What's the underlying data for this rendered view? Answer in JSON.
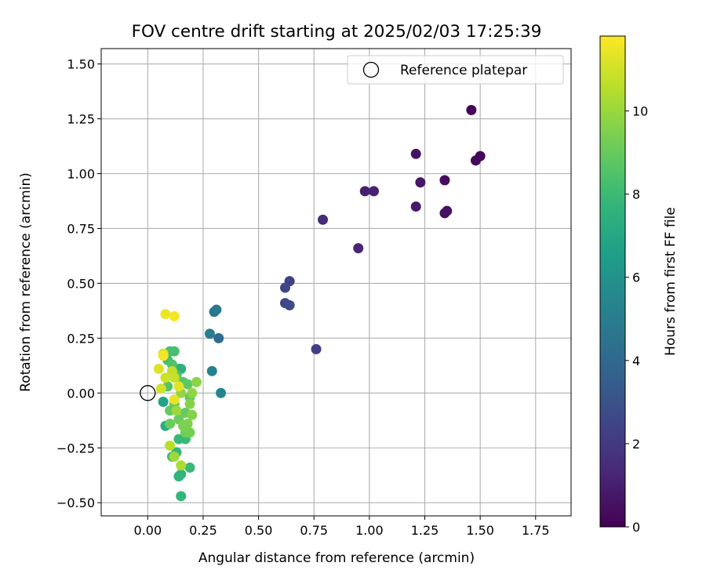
{
  "chart_data": {
    "type": "scatter",
    "title": "FOV centre drift starting at 2025/02/03 17:25:39",
    "xlabel": "Angular distance from reference (arcmin)",
    "ylabel": "Rotation from reference (arcmin)",
    "xlim": [
      -0.21,
      1.91
    ],
    "ylim": [
      -0.56,
      1.57
    ],
    "xticks": [
      "0.00",
      "0.25",
      "0.50",
      "0.75",
      "1.00",
      "1.25",
      "1.50",
      "1.75"
    ],
    "xtick_values": [
      0,
      0.25,
      0.5,
      0.75,
      1.0,
      1.25,
      1.5,
      1.75
    ],
    "yticks": [
      "−0.50",
      "−0.25",
      "0.00",
      "0.25",
      "0.50",
      "0.75",
      "1.00",
      "1.25",
      "1.50"
    ],
    "ytick_values": [
      -0.5,
      -0.25,
      0,
      0.25,
      0.5,
      0.75,
      1.0,
      1.25,
      1.5
    ],
    "grid": true,
    "legend": {
      "position": "top-right",
      "label": "Reference platepar"
    },
    "reference_point": {
      "x": 0,
      "y": 0
    },
    "colorbar": {
      "label": "Hours from first FF file",
      "colormap": "viridis",
      "range": [
        0,
        11.8
      ],
      "ticks": [
        "0",
        "2",
        "4",
        "6",
        "8",
        "10"
      ],
      "tick_values": [
        0,
        2,
        4,
        6,
        8,
        10
      ]
    },
    "points": [
      {
        "x": 1.46,
        "y": 1.29,
        "c": 0.1
      },
      {
        "x": 1.48,
        "y": 1.06,
        "c": 0.2
      },
      {
        "x": 1.5,
        "y": 1.08,
        "c": 0.2
      },
      {
        "x": 1.34,
        "y": 0.97,
        "c": 0.4
      },
      {
        "x": 1.34,
        "y": 0.82,
        "c": 0.5
      },
      {
        "x": 1.35,
        "y": 0.83,
        "c": 0.5
      },
      {
        "x": 1.21,
        "y": 1.09,
        "c": 0.6
      },
      {
        "x": 1.23,
        "y": 0.96,
        "c": 0.7
      },
      {
        "x": 1.21,
        "y": 0.85,
        "c": 0.8
      },
      {
        "x": 0.98,
        "y": 0.92,
        "c": 1.0
      },
      {
        "x": 1.02,
        "y": 0.92,
        "c": 1.1
      },
      {
        "x": 0.95,
        "y": 0.66,
        "c": 1.2
      },
      {
        "x": 0.79,
        "y": 0.79,
        "c": 1.5
      },
      {
        "x": 0.76,
        "y": 0.2,
        "c": 2.2
      },
      {
        "x": 0.64,
        "y": 0.51,
        "c": 2.3
      },
      {
        "x": 0.62,
        "y": 0.48,
        "c": 2.5
      },
      {
        "x": 0.62,
        "y": 0.41,
        "c": 2.6
      },
      {
        "x": 0.64,
        "y": 0.4,
        "c": 2.7
      },
      {
        "x": 0.3,
        "y": 0.37,
        "c": 4.6
      },
      {
        "x": 0.31,
        "y": 0.38,
        "c": 4.8
      },
      {
        "x": 0.32,
        "y": 0.25,
        "c": 4.2
      },
      {
        "x": 0.28,
        "y": 0.27,
        "c": 5.0
      },
      {
        "x": 0.29,
        "y": 0.1,
        "c": 5.2
      },
      {
        "x": 0.33,
        "y": 0.0,
        "c": 5.4
      },
      {
        "x": 0.07,
        "y": -0.04,
        "c": 6.8
      },
      {
        "x": 0.12,
        "y": -0.03,
        "c": 7.0
      },
      {
        "x": 0.08,
        "y": -0.15,
        "c": 7.3
      },
      {
        "x": 0.14,
        "y": 0.11,
        "c": 7.4
      },
      {
        "x": 0.15,
        "y": 0.11,
        "c": 7.5
      },
      {
        "x": 0.15,
        "y": -0.37,
        "c": 7.6
      },
      {
        "x": 0.14,
        "y": -0.38,
        "c": 7.7
      },
      {
        "x": 0.13,
        "y": -0.27,
        "c": 7.8
      },
      {
        "x": 0.15,
        "y": -0.47,
        "c": 7.8
      },
      {
        "x": 0.19,
        "y": -0.34,
        "c": 8.0
      },
      {
        "x": 0.17,
        "y": -0.21,
        "c": 8.0
      },
      {
        "x": 0.14,
        "y": -0.21,
        "c": 7.9
      },
      {
        "x": 0.11,
        "y": -0.29,
        "c": 8.1
      },
      {
        "x": 0.09,
        "y": 0.15,
        "c": 8.2
      },
      {
        "x": 0.1,
        "y": 0.19,
        "c": 8.4
      },
      {
        "x": 0.12,
        "y": 0.19,
        "c": 8.3
      },
      {
        "x": 0.11,
        "y": 0.13,
        "c": 8.5
      },
      {
        "x": 0.09,
        "y": 0.03,
        "c": 8.6
      },
      {
        "x": 0.13,
        "y": 0.08,
        "c": 8.6
      },
      {
        "x": 0.16,
        "y": 0.05,
        "c": 8.7
      },
      {
        "x": 0.18,
        "y": 0.04,
        "c": 8.8
      },
      {
        "x": 0.19,
        "y": -0.02,
        "c": 8.9
      },
      {
        "x": 0.12,
        "y": -0.05,
        "c": 8.9
      },
      {
        "x": 0.1,
        "y": -0.08,
        "c": 9.0
      },
      {
        "x": 0.17,
        "y": -0.09,
        "c": 9.0
      },
      {
        "x": 0.14,
        "y": -0.12,
        "c": 9.1
      },
      {
        "x": 0.1,
        "y": -0.14,
        "c": 9.1
      },
      {
        "x": 0.17,
        "y": -0.18,
        "c": 9.2
      },
      {
        "x": 0.19,
        "y": -0.18,
        "c": 9.3
      },
      {
        "x": 0.16,
        "y": -0.15,
        "c": 9.4
      },
      {
        "x": 0.18,
        "y": -0.14,
        "c": 9.5
      },
      {
        "x": 0.2,
        "y": -0.1,
        "c": 9.6
      },
      {
        "x": 0.19,
        "y": -0.05,
        "c": 9.6
      },
      {
        "x": 0.22,
        "y": 0.05,
        "c": 9.7
      },
      {
        "x": 0.2,
        "y": 0.0,
        "c": 9.8
      },
      {
        "x": 0.15,
        "y": 0.0,
        "c": 9.9
      },
      {
        "x": 0.13,
        "y": -0.08,
        "c": 10.0
      },
      {
        "x": 0.12,
        "y": -0.29,
        "c": 10.1
      },
      {
        "x": 0.15,
        "y": -0.33,
        "c": 10.3
      },
      {
        "x": 0.1,
        "y": -0.24,
        "c": 10.6
      },
      {
        "x": 0.11,
        "y": 0.1,
        "c": 10.7
      },
      {
        "x": 0.12,
        "y": 0.07,
        "c": 10.8
      },
      {
        "x": 0.08,
        "y": 0.07,
        "c": 10.9
      },
      {
        "x": 0.06,
        "y": 0.02,
        "c": 11.0
      },
      {
        "x": 0.07,
        "y": 0.18,
        "c": 11.1
      },
      {
        "x": 0.05,
        "y": 0.11,
        "c": 11.2
      },
      {
        "x": 0.14,
        "y": 0.03,
        "c": 11.3
      },
      {
        "x": 0.12,
        "y": -0.03,
        "c": 11.4
      },
      {
        "x": 0.08,
        "y": 0.36,
        "c": 11.5
      },
      {
        "x": 0.12,
        "y": 0.35,
        "c": 11.6
      },
      {
        "x": 0.07,
        "y": 0.17,
        "c": 11.7
      }
    ]
  }
}
